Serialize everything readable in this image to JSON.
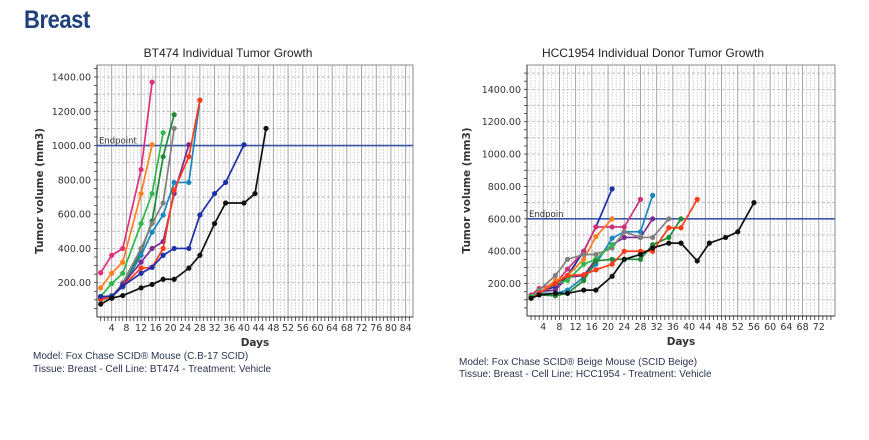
{
  "page_title": "Breast",
  "chart_data": [
    {
      "type": "line",
      "title": "BT474 Individual Tumor Growth",
      "xlabel": "Days",
      "ylabel": "Tumor volume (mm3)",
      "xlim": [
        0,
        86
      ],
      "ylim": [
        0,
        1470
      ],
      "x_ticks": [
        4,
        8,
        12,
        16,
        20,
        24,
        28,
        32,
        36,
        40,
        44,
        48,
        52,
        56,
        60,
        64,
        68,
        72,
        76,
        80,
        84
      ],
      "y_ticks": [
        200,
        400,
        600,
        800,
        1000,
        1200,
        1400
      ],
      "y_tick_labels": [
        "200.00",
        "400.00",
        "600.00",
        "800.00",
        "1000.00",
        "1200.00",
        "1400.00"
      ],
      "grid": true,
      "reference_line": {
        "label": "Endpoint",
        "value": 1000,
        "color": "#3a56a8"
      },
      "footnote": [
        "Model: Fox Chase SCID® Mouse  (C.B-17 SCID)",
        "Tissue: Breast  -  Cell Line: BT474  -  Treatment: Vehicle"
      ],
      "series": [
        {
          "color": "#e0307a",
          "points": [
            [
              1,
              258
            ],
            [
              4,
              360
            ],
            [
              7,
              400
            ],
            [
              12,
              860
            ],
            [
              15,
              1370
            ]
          ]
        },
        {
          "color": "#ff7f1e",
          "points": [
            [
              1,
              170
            ],
            [
              4,
              255
            ],
            [
              7,
              320
            ],
            [
              12,
              720
            ],
            [
              15,
              1005
            ]
          ]
        },
        {
          "color": "#2fb84a",
          "points": [
            [
              1,
              120
            ],
            [
              4,
              195
            ],
            [
              7,
              255
            ],
            [
              12,
              545
            ],
            [
              15,
              720
            ],
            [
              18,
              1075
            ]
          ]
        },
        {
          "color": "#1f8a35",
          "points": [
            [
              1,
              110
            ],
            [
              4,
              115
            ],
            [
              7,
              180
            ],
            [
              12,
              380
            ],
            [
              15,
              560
            ],
            [
              18,
              935
            ],
            [
              21,
              1180
            ]
          ]
        },
        {
          "color": "#808080",
          "points": [
            [
              1,
              100
            ],
            [
              4,
              110
            ],
            [
              7,
              200
            ],
            [
              12,
              400
            ],
            [
              15,
              545
            ],
            [
              18,
              665
            ],
            [
              21,
              1100
            ]
          ]
        },
        {
          "color": "#1a86c0",
          "points": [
            [
              1,
              115
            ],
            [
              4,
              125
            ],
            [
              7,
              175
            ],
            [
              12,
              360
            ],
            [
              15,
              495
            ],
            [
              18,
              595
            ],
            [
              21,
              785
            ],
            [
              25,
              785
            ],
            [
              28,
              1265
            ]
          ]
        },
        {
          "color": "#7a2a8a",
          "points": [
            [
              1,
              110
            ],
            [
              4,
              120
            ],
            [
              7,
              190
            ],
            [
              12,
              320
            ],
            [
              15,
              400
            ],
            [
              18,
              440
            ],
            [
              21,
              720
            ],
            [
              25,
              1005
            ]
          ]
        },
        {
          "color": "#ff3a1a",
          "points": [
            [
              1,
              105
            ],
            [
              4,
              120
            ],
            [
              7,
              180
            ],
            [
              12,
              285
            ],
            [
              15,
              290
            ],
            [
              18,
              400
            ],
            [
              21,
              740
            ],
            [
              25,
              935
            ],
            [
              28,
              1265
            ]
          ]
        },
        {
          "color": "#1c2fa8",
          "points": [
            [
              1,
              120
            ],
            [
              4,
              120
            ],
            [
              7,
              180
            ],
            [
              12,
              255
            ],
            [
              15,
              290
            ],
            [
              18,
              360
            ],
            [
              21,
              400
            ],
            [
              25,
              400
            ],
            [
              28,
              595
            ],
            [
              32,
              720
            ],
            [
              35,
              785
            ],
            [
              40,
              1005
            ]
          ]
        },
        {
          "color": "#111111",
          "points": [
            [
              1,
              75
            ],
            [
              4,
              110
            ],
            [
              7,
              125
            ],
            [
              12,
              170
            ],
            [
              15,
              190
            ],
            [
              18,
              220
            ],
            [
              21,
              220
            ],
            [
              25,
              285
            ],
            [
              28,
              360
            ],
            [
              32,
              545
            ],
            [
              35,
              665
            ],
            [
              40,
              665
            ],
            [
              43,
              720
            ],
            [
              46,
              1100
            ]
          ]
        }
      ]
    },
    {
      "type": "line",
      "title": "HCC1954 Individual Donor Tumor Growth",
      "xlabel": "Days",
      "ylabel": "Tumor volume (mm3)",
      "xlim": [
        0,
        76
      ],
      "ylim": [
        0,
        1550
      ],
      "x_ticks": [
        4,
        8,
        12,
        16,
        20,
        24,
        28,
        32,
        36,
        40,
        44,
        48,
        52,
        56,
        60,
        64,
        68,
        72
      ],
      "y_ticks": [
        200,
        400,
        600,
        800,
        1000,
        1200,
        1400
      ],
      "y_tick_labels": [
        "200.00",
        "400.00",
        "600.00",
        "800.00",
        "1000.00",
        "1200.00",
        "1400.00"
      ],
      "grid": true,
      "reference_line": {
        "label": "Endpoin",
        "value": 600,
        "color": "#3a56a8"
      },
      "footnote": [
        "Model: Fox Chase SCID® Beige Mouse  (SCID Beige)",
        "Tissue: Breast  -  Cell Line: HCC1954  -  Treatment: Vehicle"
      ],
      "series": [
        {
          "color": "#1c2fa8",
          "points": [
            [
              1,
              120
            ],
            [
              3,
              150
            ],
            [
              7,
              180
            ],
            [
              10,
              250
            ],
            [
              14,
              400
            ],
            [
              17,
              550
            ],
            [
              21,
              785
            ]
          ]
        },
        {
          "color": "#d0307a",
          "points": [
            [
              1,
              130
            ],
            [
              3,
              170
            ],
            [
              7,
              200
            ],
            [
              10,
              290
            ],
            [
              14,
              400
            ],
            [
              17,
              550
            ],
            [
              21,
              550
            ],
            [
              24,
              550
            ],
            [
              28,
              720
            ]
          ]
        },
        {
          "color": "#ff7f1e",
          "points": [
            [
              1,
              115
            ],
            [
              3,
              140
            ],
            [
              7,
              220
            ],
            [
              10,
              250
            ],
            [
              14,
              350
            ],
            [
              17,
              490
            ],
            [
              21,
              600
            ]
          ]
        },
        {
          "color": "#1a86c0",
          "points": [
            [
              1,
              120
            ],
            [
              3,
              140
            ],
            [
              7,
              140
            ],
            [
              10,
              160
            ],
            [
              14,
              240
            ],
            [
              17,
              320
            ],
            [
              21,
              480
            ],
            [
              24,
              520
            ],
            [
              28,
              520
            ],
            [
              31,
              745
            ]
          ]
        },
        {
          "color": "#7a2a8a",
          "points": [
            [
              1,
              120
            ],
            [
              3,
              150
            ],
            [
              7,
              160
            ],
            [
              10,
              240
            ],
            [
              14,
              250
            ],
            [
              17,
              350
            ],
            [
              21,
              440
            ],
            [
              24,
              485
            ],
            [
              28,
              485
            ],
            [
              31,
              600
            ]
          ]
        },
        {
          "color": "#808080",
          "points": [
            [
              1,
              120
            ],
            [
              3,
              160
            ],
            [
              7,
              250
            ],
            [
              10,
              350
            ],
            [
              14,
              380
            ],
            [
              17,
              380
            ],
            [
              21,
              420
            ],
            [
              24,
              520
            ],
            [
              28,
              485
            ],
            [
              31,
              485
            ],
            [
              35,
              600
            ]
          ]
        },
        {
          "color": "#2fb84a",
          "points": [
            [
              1,
              120
            ],
            [
              3,
              140
            ],
            [
              7,
              200
            ],
            [
              10,
              220
            ],
            [
              14,
              320
            ],
            [
              17,
              350
            ],
            [
              21,
              440
            ]
          ]
        },
        {
          "color": "#1f8a35",
          "points": [
            [
              1,
              110
            ],
            [
              3,
              130
            ],
            [
              7,
              125
            ],
            [
              10,
              140
            ],
            [
              14,
              220
            ],
            [
              17,
              340
            ],
            [
              21,
              350
            ],
            [
              24,
              350
            ],
            [
              28,
              350
            ],
            [
              31,
              440
            ],
            [
              35,
              485
            ],
            [
              38,
              600
            ]
          ]
        },
        {
          "color": "#ff3a1a",
          "points": [
            [
              1,
              110
            ],
            [
              3,
              140
            ],
            [
              7,
              200
            ],
            [
              10,
              250
            ],
            [
              14,
              255
            ],
            [
              17,
              285
            ],
            [
              21,
              320
            ],
            [
              24,
              400
            ],
            [
              28,
              400
            ],
            [
              31,
              400
            ],
            [
              35,
              545
            ],
            [
              38,
              545
            ],
            [
              42,
              720
            ]
          ]
        },
        {
          "color": "#111111",
          "points": [
            [
              1,
              110
            ],
            [
              3,
              130
            ],
            [
              7,
              140
            ],
            [
              10,
              140
            ],
            [
              14,
              160
            ],
            [
              17,
              160
            ],
            [
              21,
              245
            ],
            [
              24,
              350
            ],
            [
              28,
              380
            ],
            [
              31,
              420
            ],
            [
              35,
              450
            ],
            [
              38,
              450
            ],
            [
              42,
              340
            ],
            [
              45,
              450
            ],
            [
              49,
              485
            ],
            [
              52,
              520
            ],
            [
              56,
              700
            ]
          ]
        }
      ]
    }
  ]
}
